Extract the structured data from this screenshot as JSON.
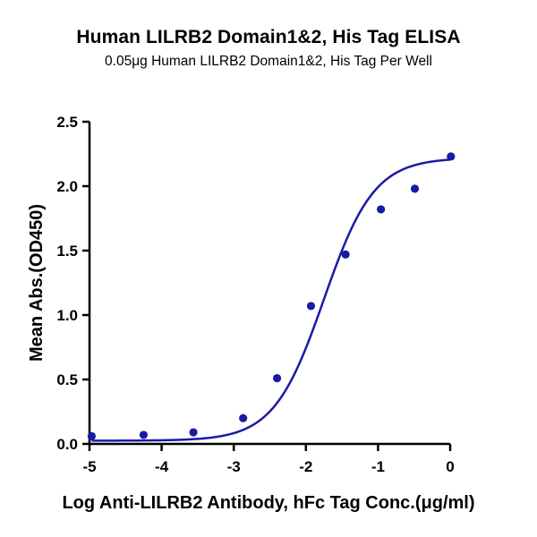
{
  "chart_data": {
    "type": "scatter",
    "title": "Human LILRB2 Domain1&2, His Tag ELISA",
    "subtitle": "0.05μg Human LILRB2 Domain1&2, His Tag Per Well",
    "xlabel": "Log Anti-LILRB2 Antibody, hFc Tag Conc.(μg/ml)",
    "ylabel": "Mean Abs.(OD450)",
    "xlim": [
      -5,
      0
    ],
    "ylim": [
      0,
      2.5
    ],
    "x_ticks": [
      "-5",
      "-4",
      "-3",
      "-2",
      "-1",
      "0"
    ],
    "y_ticks": [
      "0.0",
      "0.5",
      "1.0",
      "1.5",
      "2.0",
      "2.5"
    ],
    "grid": false,
    "series": [
      {
        "x": [
          -4.97,
          -4.25,
          -3.56,
          -2.87,
          -2.4,
          -1.93,
          -1.45,
          -0.96,
          -0.49,
          0.01
        ],
        "y": [
          0.06,
          0.07,
          0.09,
          0.2,
          0.51,
          1.07,
          1.47,
          1.82,
          1.98,
          2.23
        ],
        "color": "#1a1aa6",
        "fit": "4PL",
        "fit_params": {
          "bottom": 0.025,
          "top": 2.22,
          "logEC50": -1.75,
          "hill": 1.25
        }
      }
    ]
  }
}
